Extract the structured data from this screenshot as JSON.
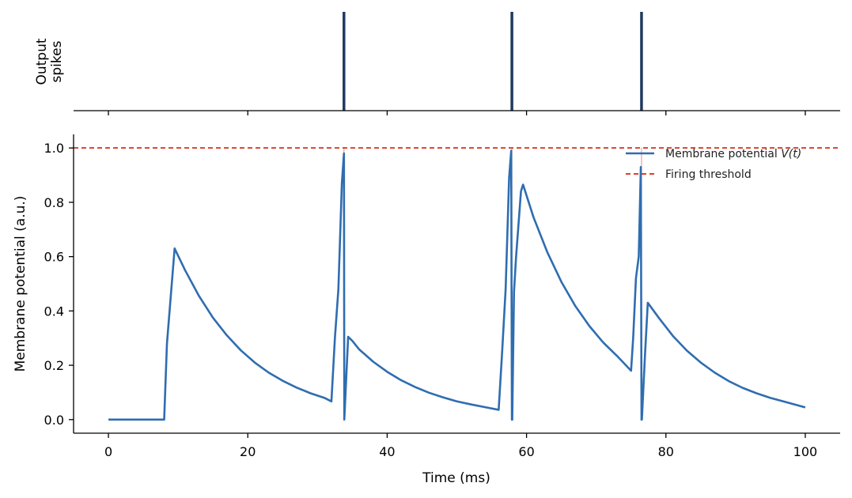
{
  "chart_data": [
    {
      "panel": "top",
      "type": "event",
      "ylabel": [
        "Output",
        "spikes"
      ],
      "spike_times": [
        33.8,
        57.9,
        76.5
      ],
      "spike_color": "#1f3a5f",
      "xlim": [
        -5,
        105
      ],
      "grid": false
    },
    {
      "panel": "bottom",
      "type": "line",
      "xlabel": "Time (ms)",
      "ylabel": "Membrane potential (a.u.)",
      "xlim": [
        -5,
        105
      ],
      "ylim": [
        -0.05,
        1.05
      ],
      "xticks": [
        "0",
        "20",
        "40",
        "60",
        "80",
        "100"
      ],
      "yticks": [
        "0.0",
        "0.2",
        "0.4",
        "0.6",
        "0.8",
        "1.0"
      ],
      "grid": false,
      "legend_position": "top-right",
      "threshold": {
        "name": "Firing threshold",
        "value": 1.0,
        "color": "#d9432b"
      },
      "reset_lines_at": [
        33.8,
        57.9,
        76.5
      ],
      "series": [
        {
          "name": "Membrane potential V(t)",
          "legend_prefix": "Membrane potential ",
          "legend_var": "V(t)",
          "color": "#2f6db0",
          "x": [
            0,
            8,
            8.4,
            9.5,
            11,
            13,
            15,
            17,
            19,
            21,
            23,
            25,
            27,
            29,
            31,
            32,
            32.5,
            33.0,
            33.5,
            33.8,
            33.85,
            34.4,
            35,
            36,
            38,
            40,
            42,
            44,
            46,
            48,
            50,
            52,
            54,
            56,
            56.5,
            57.0,
            57.5,
            57.8,
            57.9,
            57.95,
            58.2,
            58.5,
            59.2,
            59.5,
            61,
            63,
            65,
            67,
            69,
            71,
            73,
            75,
            75.3,
            75.7,
            76.1,
            76.4,
            76.5,
            76.55,
            77.0,
            77.4,
            79,
            81,
            83,
            85,
            87,
            89,
            91,
            93,
            95,
            97,
            100
          ],
          "y": [
            0,
            0,
            0.28,
            0.63,
            0.55,
            0.455,
            0.375,
            0.31,
            0.255,
            0.21,
            0.173,
            0.143,
            0.118,
            0.097,
            0.08,
            0.067,
            0.3,
            0.48,
            0.87,
            0.98,
            0.0,
            0.305,
            0.29,
            0.258,
            0.213,
            0.176,
            0.145,
            0.12,
            0.099,
            0.082,
            0.067,
            0.056,
            0.046,
            0.036,
            0.25,
            0.48,
            0.89,
            0.99,
            0.0,
            0.0,
            0.47,
            0.6,
            0.84,
            0.865,
            0.745,
            0.615,
            0.507,
            0.418,
            0.345,
            0.284,
            0.234,
            0.18,
            0.3,
            0.52,
            0.6,
            0.93,
            0.0,
            0.0,
            0.24,
            0.43,
            0.374,
            0.308,
            0.254,
            0.21,
            0.173,
            0.142,
            0.117,
            0.097,
            0.08,
            0.066,
            0.045
          ]
        }
      ]
    }
  ]
}
